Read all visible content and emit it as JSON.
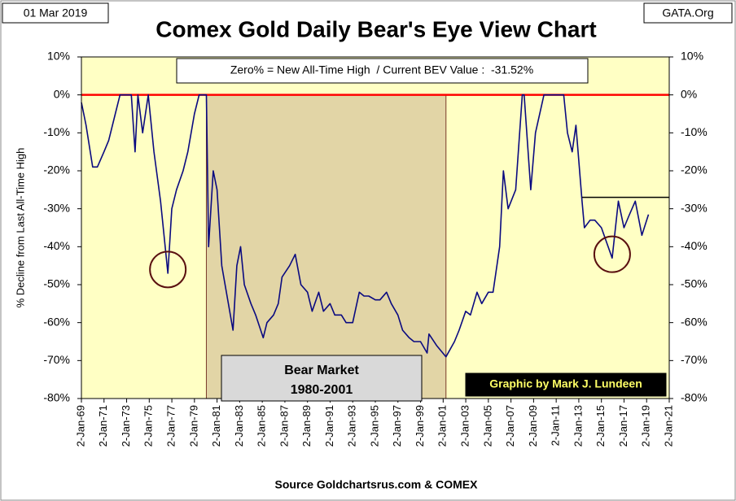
{
  "chart_data": {
    "type": "line",
    "title": "Comex Gold Daily Bear's Eye View Chart",
    "date_label": "01 Mar 2019",
    "source_tag": "GATA.Org",
    "info_box": "Zero% = New All-Time High  / Current BEV Value :  -31.52%",
    "bear_market": {
      "title": "Bear Market",
      "years": "1980-2001",
      "span": [
        "1980-01-21",
        "2001-04-02"
      ]
    },
    "credit": "Graphic by Mark J. Lundeen",
    "footer": "Source Goldchartsrus.com & COMEX",
    "y_label": "% Decline from Last All-Time High",
    "highlights": [
      {
        "x": "1976-08-25",
        "y": -46
      },
      {
        "x": "2015-12-15",
        "y": -42
      }
    ],
    "reference_line": {
      "y": -27,
      "x": [
        "2013-04-15",
        "2021-01-02"
      ]
    },
    "zero_line_color": "#ff0000",
    "series": [
      {
        "name": "BEV",
        "color": "#0a0a80",
        "x": [
          "1969-01-02",
          "1969-06-01",
          "1970-01-01",
          "1970-06-01",
          "1971-01-01",
          "1971-06-01",
          "1972-01-01",
          "1972-06-01",
          "1973-01-01",
          "1973-06-01",
          "1973-10-01",
          "1974-01-01",
          "1974-06-01",
          "1974-12-01",
          "1975-06-01",
          "1976-01-01",
          "1976-08-25",
          "1977-01-01",
          "1977-06-01",
          "1978-01-01",
          "1978-06-01",
          "1979-01-01",
          "1979-06-01",
          "1980-01-21",
          "1980-04-01",
          "1980-09-01",
          "1981-01-01",
          "1981-06-01",
          "1982-01-01",
          "1982-06-01",
          "1982-10-01",
          "1983-02-01",
          "1983-06-01",
          "1984-01-01",
          "1984-06-01",
          "1985-02-01",
          "1985-06-01",
          "1986-01-01",
          "1986-06-01",
          "1986-10-01",
          "1987-06-01",
          "1987-12-01",
          "1988-06-01",
          "1989-01-01",
          "1989-06-01",
          "1990-01-01",
          "1990-06-01",
          "1991-01-01",
          "1991-06-01",
          "1992-01-01",
          "1992-06-01",
          "1993-01-01",
          "1993-08-01",
          "1994-01-01",
          "1994-06-01",
          "1995-01-01",
          "1995-06-01",
          "1996-01-01",
          "1996-06-01",
          "1997-01-01",
          "1997-06-01",
          "1998-01-01",
          "1998-06-01",
          "1999-01-01",
          "1999-08-01",
          "1999-10-01",
          "2000-06-01",
          "2001-04-02",
          "2002-01-01",
          "2002-06-01",
          "2003-01-01",
          "2003-06-01",
          "2004-01-01",
          "2004-06-01",
          "2005-01-01",
          "2005-06-01",
          "2006-01-01",
          "2006-05-01",
          "2006-10-01",
          "2007-06-01",
          "2008-01-01",
          "2008-03-01",
          "2008-10-01",
          "2009-03-01",
          "2009-12-01",
          "2010-06-01",
          "2011-01-01",
          "2011-09-01",
          "2012-01-01",
          "2012-06-01",
          "2012-10-01",
          "2013-04-15",
          "2013-07-01",
          "2014-01-01",
          "2014-06-01",
          "2015-01-01",
          "2015-12-15",
          "2016-07-01",
          "2017-01-01",
          "2017-06-01",
          "2018-01-01",
          "2018-08-01",
          "2019-03-01"
        ],
        "values": [
          -2,
          -8,
          -19,
          -19,
          -15,
          -12,
          -5,
          0,
          0,
          0,
          -15,
          0,
          -10,
          0,
          -15,
          -28,
          -47,
          -30,
          -25,
          -20,
          -15,
          -5,
          0,
          0,
          -40,
          -20,
          -25,
          -45,
          -55,
          -62,
          -45,
          -40,
          -50,
          -55,
          -58,
          -64,
          -60,
          -58,
          -55,
          -48,
          -45,
          -42,
          -50,
          -52,
          -57,
          -52,
          -57,
          -55,
          -58,
          -58,
          -60,
          -60,
          -52,
          -53,
          -53,
          -54,
          -54,
          -52,
          -55,
          -58,
          -62,
          -64,
          -65,
          -65,
          -68,
          -63,
          -66,
          -69,
          -65,
          -62,
          -57,
          -58,
          -52,
          -55,
          -52,
          -52,
          -40,
          -20,
          -30,
          -25,
          0,
          0,
          -25,
          -10,
          0,
          0,
          0,
          0,
          -10,
          -15,
          -8,
          -28,
          -35,
          -33,
          -33,
          -35,
          -43,
          -28,
          -35,
          -32,
          -28,
          -37,
          -31.52
        ]
      }
    ],
    "xlim": [
      "1969-01-02",
      "2021-01-02"
    ],
    "xticks": [
      {
        "value": "1969-01-02",
        "label": "2-Jan-69"
      },
      {
        "value": "1971-01-02",
        "label": "2-Jan-71"
      },
      {
        "value": "1973-01-02",
        "label": "2-Jan-73"
      },
      {
        "value": "1975-01-02",
        "label": "2-Jan-75"
      },
      {
        "value": "1977-01-02",
        "label": "2-Jan-77"
      },
      {
        "value": "1979-01-02",
        "label": "2-Jan-79"
      },
      {
        "value": "1981-01-02",
        "label": "2-Jan-81"
      },
      {
        "value": "1983-01-02",
        "label": "2-Jan-83"
      },
      {
        "value": "1985-01-02",
        "label": "2-Jan-85"
      },
      {
        "value": "1987-01-02",
        "label": "2-Jan-87"
      },
      {
        "value": "1989-01-02",
        "label": "2-Jan-89"
      },
      {
        "value": "1991-01-02",
        "label": "2-Jan-91"
      },
      {
        "value": "1993-01-02",
        "label": "2-Jan-93"
      },
      {
        "value": "1995-01-02",
        "label": "2-Jan-95"
      },
      {
        "value": "1997-01-02",
        "label": "2-Jan-97"
      },
      {
        "value": "1999-01-02",
        "label": "2-Jan-99"
      },
      {
        "value": "2001-01-02",
        "label": "2-Jan-01"
      },
      {
        "value": "2003-01-02",
        "label": "2-Jan-03"
      },
      {
        "value": "2005-01-02",
        "label": "2-Jan-05"
      },
      {
        "value": "2007-01-02",
        "label": "2-Jan-07"
      },
      {
        "value": "2009-01-02",
        "label": "2-Jan-09"
      },
      {
        "value": "2011-01-02",
        "label": "2-Jan-11"
      },
      {
        "value": "2013-01-02",
        "label": "2-Jan-13"
      },
      {
        "value": "2015-01-02",
        "label": "2-Jan-15"
      },
      {
        "value": "2017-01-02",
        "label": "2-Jan-17"
      },
      {
        "value": "2019-01-02",
        "label": "2-Jan-19"
      },
      {
        "value": "2021-01-02",
        "label": "2-Jan-21"
      }
    ],
    "ylim": [
      -80,
      10
    ],
    "yticks": [
      {
        "value": 10,
        "label": "10%"
      },
      {
        "value": 0,
        "label": "0%"
      },
      {
        "value": -10,
        "label": "-10%"
      },
      {
        "value": -20,
        "label": "-20%"
      },
      {
        "value": -30,
        "label": "-30%"
      },
      {
        "value": -40,
        "label": "-40%"
      },
      {
        "value": -50,
        "label": "-50%"
      },
      {
        "value": -60,
        "label": "-60%"
      },
      {
        "value": -70,
        "label": "-70%"
      },
      {
        "value": -80,
        "label": "-80%"
      }
    ],
    "y2lim": [
      -80,
      10
    ],
    "y2ticks": [
      {
        "value": 10,
        "label": "10%"
      },
      {
        "value": 0,
        "label": "0%"
      },
      {
        "value": -10,
        "label": "-10%"
      },
      {
        "value": -20,
        "label": "-20%"
      },
      {
        "value": -30,
        "label": "-30%"
      },
      {
        "value": -40,
        "label": "-40%"
      },
      {
        "value": -50,
        "label": "-50%"
      },
      {
        "value": -60,
        "label": "-60%"
      },
      {
        "value": -70,
        "label": "-70%"
      },
      {
        "value": -80,
        "label": "-80%"
      }
    ]
  }
}
